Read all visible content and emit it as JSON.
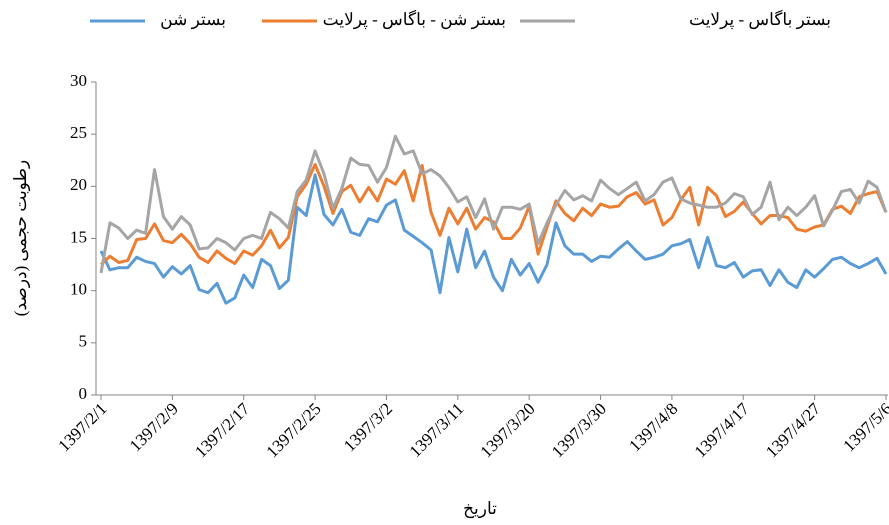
{
  "chart_data": {
    "type": "line",
    "xlabel": "تاریخ",
    "ylabel": "رطوبت حجمی (درصد)",
    "legend": "top",
    "grid": false,
    "ylim": [
      0,
      30
    ],
    "yticks": [
      0,
      5,
      10,
      15,
      20,
      25,
      30
    ],
    "categories": [
      "1397/2/1",
      null,
      null,
      null,
      null,
      null,
      null,
      null,
      "1397/2/9",
      null,
      null,
      null,
      null,
      null,
      null,
      null,
      "1397/2/17",
      null,
      null,
      null,
      null,
      null,
      null,
      null,
      "1397/2/25",
      null,
      null,
      null,
      null,
      null,
      null,
      null,
      "1397/3/2",
      null,
      null,
      null,
      null,
      null,
      null,
      null,
      "1397/3/11",
      null,
      null,
      null,
      null,
      null,
      null,
      null,
      "1397/3/20",
      null,
      null,
      null,
      null,
      null,
      null,
      null,
      "1397/3/30",
      null,
      null,
      null,
      null,
      null,
      null,
      null,
      "1397/4/8",
      null,
      null,
      null,
      null,
      null,
      null,
      null,
      "1397/4/17",
      null,
      null,
      null,
      null,
      null,
      null,
      null,
      "1397/4/27",
      null,
      null,
      null,
      null,
      null,
      null,
      null,
      "1397/5/6"
    ],
    "series": [
      {
        "name": "بستر شن",
        "color": "#5b9bd5",
        "values": [
          13.8,
          12.0,
          12.2,
          12.2,
          13.2,
          12.8,
          12.6,
          11.3,
          12.3,
          11.6,
          12.4,
          10.1,
          9.8,
          10.7,
          8.8,
          9.3,
          11.5,
          10.3,
          13.0,
          12.4,
          10.2,
          11.0,
          18.0,
          17.2,
          21.1,
          17.3,
          16.3,
          17.8,
          15.6,
          15.3,
          16.9,
          16.6,
          18.2,
          18.7,
          15.8,
          15.2,
          14.6,
          13.9,
          9.8,
          15.1,
          11.8,
          15.9,
          12.2,
          13.8,
          11.3,
          10.0,
          13.0,
          11.5,
          12.6,
          10.8,
          12.5,
          16.5,
          14.3,
          13.5,
          13.5,
          12.8,
          13.3,
          13.2,
          14.0,
          14.7,
          13.8,
          13.0,
          13.2,
          13.5,
          14.3,
          14.5,
          14.9,
          12.2,
          15.1,
          12.4,
          12.2,
          12.7,
          11.3,
          11.9,
          12.0,
          10.5,
          12.0,
          10.8,
          10.3,
          12.0,
          11.3,
          12.1,
          13.0,
          13.2,
          12.6,
          12.2,
          12.6,
          13.1,
          11.6
        ]
      },
      {
        "name": "بستر شن - باگاس - پرلایت",
        "color": "#ed7d31",
        "values": [
          12.5,
          13.3,
          12.7,
          12.9,
          14.9,
          15.0,
          16.4,
          14.8,
          14.6,
          15.4,
          14.5,
          13.2,
          12.7,
          13.8,
          13.1,
          12.6,
          13.8,
          13.4,
          14.3,
          15.8,
          14.1,
          15.1,
          19.0,
          20.2,
          22.1,
          20.0,
          17.4,
          19.5,
          20.1,
          18.5,
          19.9,
          18.6,
          20.7,
          20.2,
          21.5,
          18.6,
          22.0,
          17.5,
          15.3,
          17.9,
          16.4,
          17.9,
          15.9,
          17.0,
          16.6,
          15.0,
          15.0,
          16.0,
          18.1,
          13.5,
          16.1,
          18.6,
          17.4,
          16.7,
          17.9,
          17.2,
          18.3,
          18.0,
          18.1,
          19.0,
          19.4,
          18.3,
          18.7,
          16.3,
          17.0,
          18.7,
          19.9,
          16.3,
          19.9,
          19.1,
          17.1,
          17.6,
          18.5,
          17.4,
          16.4,
          17.2,
          17.2,
          17.0,
          15.9,
          15.7,
          16.1,
          16.3,
          17.8,
          18.1,
          17.4,
          19.0,
          19.3,
          19.5,
          17.5
        ]
      },
      {
        "name": "بستر باگاس - پرلایت",
        "color": "#a5a5a5",
        "values": [
          11.7,
          16.5,
          16.0,
          15.0,
          15.8,
          15.5,
          21.6,
          17.1,
          15.9,
          17.1,
          16.3,
          14.0,
          14.1,
          15.0,
          14.6,
          13.9,
          15.0,
          15.3,
          15.0,
          17.5,
          16.9,
          16.0,
          19.5,
          20.6,
          23.4,
          21.2,
          17.9,
          19.8,
          22.7,
          22.1,
          22.0,
          20.4,
          21.8,
          24.8,
          23.1,
          23.4,
          21.2,
          21.6,
          21.0,
          19.9,
          18.5,
          19.0,
          17.0,
          18.8,
          15.9,
          18.0,
          18.0,
          17.8,
          18.3,
          14.5,
          16.5,
          18.2,
          19.6,
          18.7,
          19.1,
          18.6,
          20.6,
          19.8,
          19.2,
          19.8,
          20.4,
          18.6,
          19.2,
          20.4,
          20.8,
          18.8,
          18.4,
          18.2,
          18.0,
          18.0,
          18.4,
          19.3,
          19.0,
          17.3,
          18.0,
          20.4,
          16.8,
          18.0,
          17.2,
          18.0,
          19.1,
          16.2,
          17.7,
          19.5,
          19.7,
          18.4,
          20.5,
          19.9,
          17.5
        ]
      }
    ]
  }
}
